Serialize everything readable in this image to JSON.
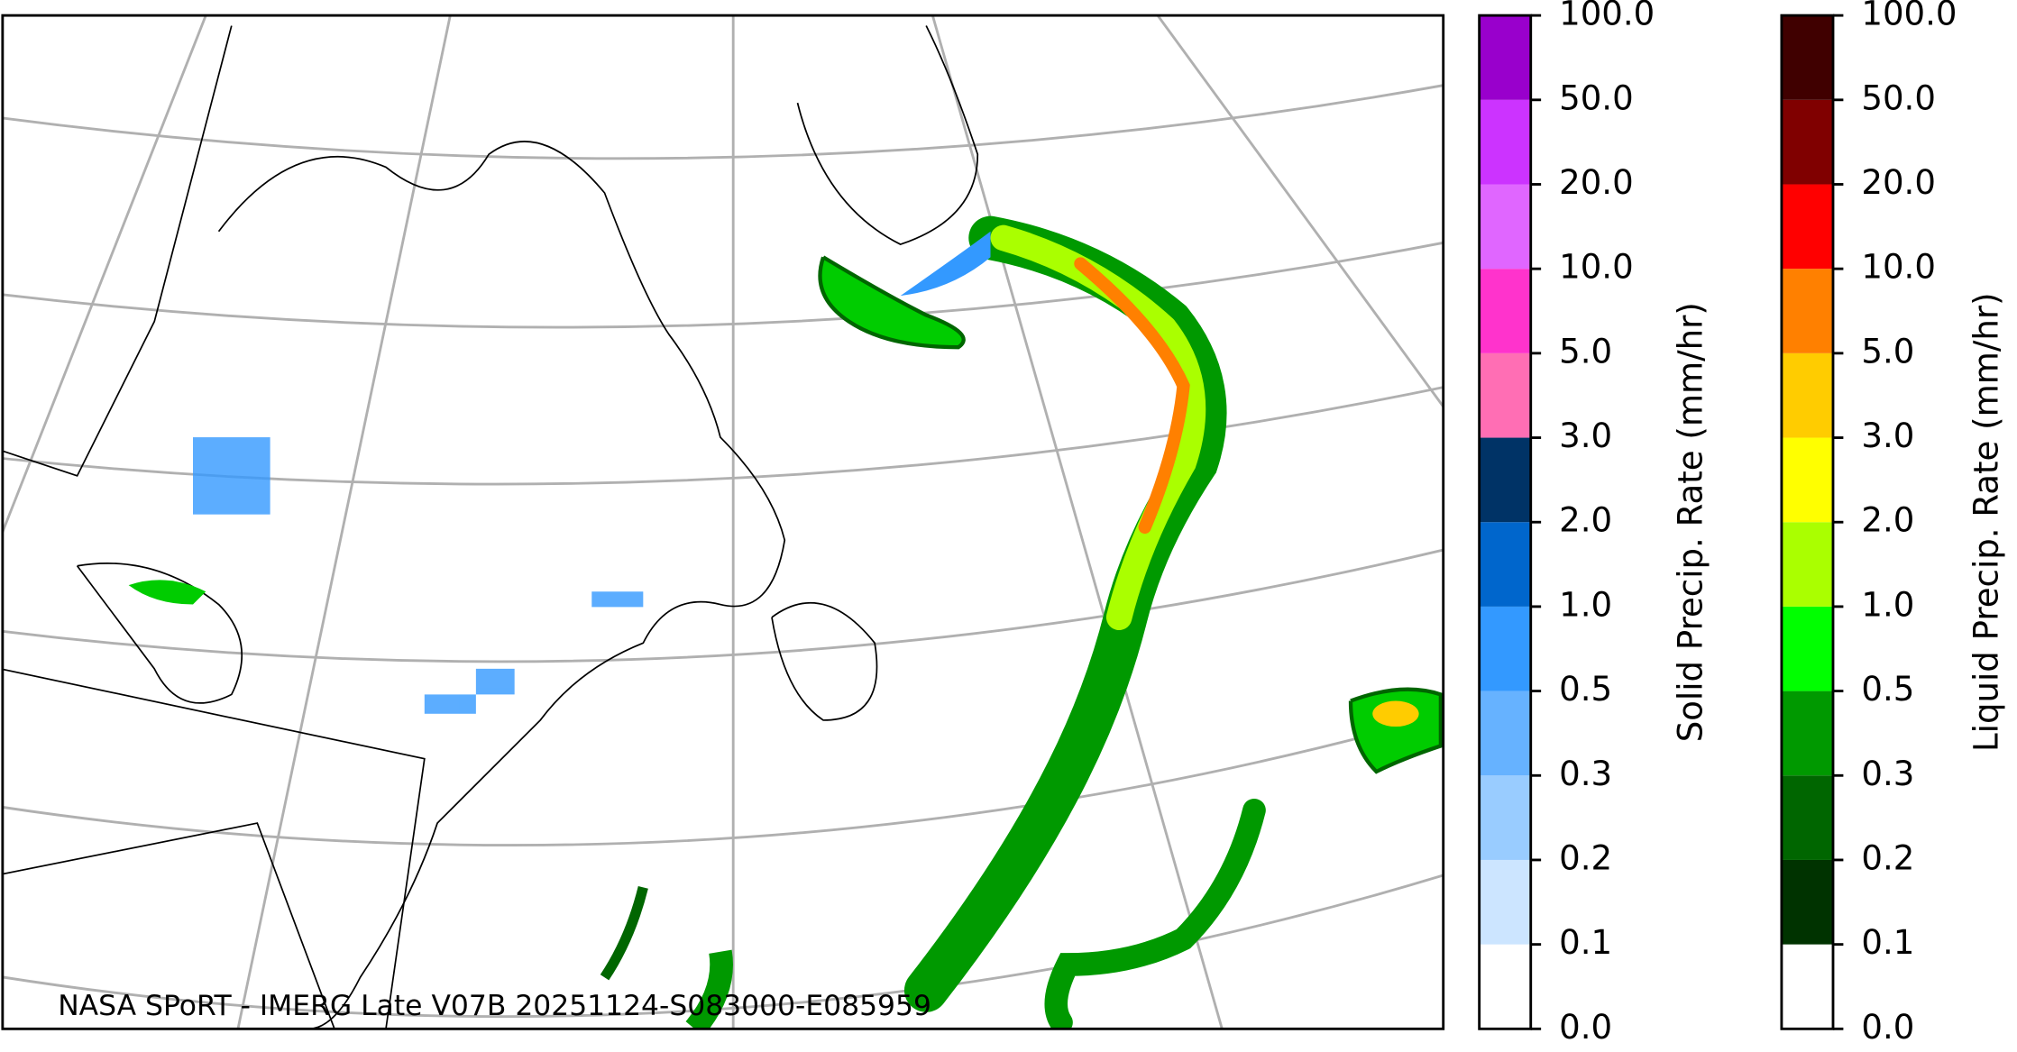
{
  "caption": "NASA SPoRT - IMERG Late V07B 20251124-S083000-E085959",
  "colorbars": [
    {
      "label": "Solid Precip. Rate (mm/hr)",
      "ticks": [
        "0.0",
        "0.1",
        "0.2",
        "0.3",
        "0.5",
        "1.0",
        "2.0",
        "3.0",
        "5.0",
        "10.0",
        "20.0",
        "50.0",
        "100.0"
      ],
      "colors": [
        "#ffffff",
        "#cce5ff",
        "#99ccff",
        "#66b2ff",
        "#3399ff",
        "#0066cc",
        "#003366",
        "#ff6eb4",
        "#ff33cc",
        "#e066ff",
        "#cc33ff",
        "#9900cc"
      ]
    },
    {
      "label": "Liquid Precip. Rate (mm/hr)",
      "ticks": [
        "0.0",
        "0.1",
        "0.2",
        "0.3",
        "0.5",
        "1.0",
        "2.0",
        "3.0",
        "5.0",
        "10.0",
        "20.0",
        "50.0",
        "100.0"
      ],
      "colors": [
        "#ffffff",
        "#003300",
        "#006600",
        "#009900",
        "#00ff00",
        "#aaff00",
        "#ffff00",
        "#ffcc00",
        "#ff8000",
        "#ff0000",
        "#800000",
        "#400000"
      ]
    }
  ]
}
